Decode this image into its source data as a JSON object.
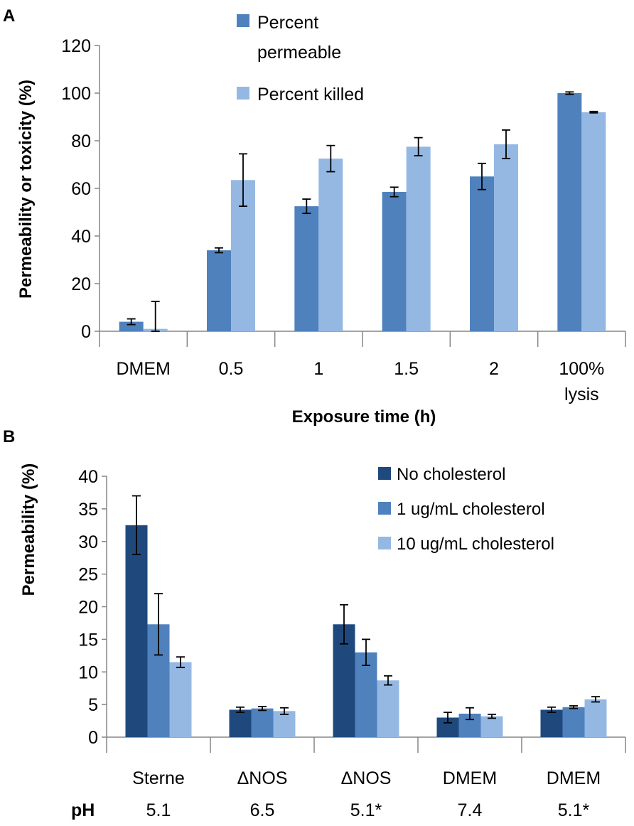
{
  "chart_data": [
    {
      "panel": "A",
      "type": "bar",
      "categories": [
        "DMEM",
        "0.5",
        "1",
        "1.5",
        "2",
        "100%\nlysis"
      ],
      "series": [
        {
          "name": "Percent\npermeable",
          "color": "#4F81BD",
          "values": [
            4,
            34,
            52.5,
            58.5,
            65,
            100
          ],
          "errors": [
            1.2,
            1.0,
            3.0,
            2.0,
            5.5,
            0.5
          ]
        },
        {
          "name": "Percent killed",
          "color": "#95B8E3",
          "values": [
            1,
            63.5,
            72.5,
            77.5,
            78.5,
            92
          ],
          "errors": [
            11.5,
            11.0,
            5.5,
            3.8,
            6.0,
            0.3
          ]
        }
      ],
      "xlabel": "Exposure time (h)",
      "ylabel": "Permeability or  toxicity (%)",
      "ylim": [
        0,
        120
      ],
      "yticks": [
        0,
        20,
        40,
        60,
        80,
        100,
        120
      ],
      "legend_position": "top-center"
    },
    {
      "panel": "B",
      "type": "bar",
      "categories": [
        "Sterne",
        "ΔNOS",
        "ΔNOS",
        "DMEM",
        "DMEM"
      ],
      "ph_label": "pH",
      "ph_values": [
        "5.1",
        "6.5",
        "5.1*",
        "7.4",
        "5.1*"
      ],
      "series": [
        {
          "name": "No cholesterol",
          "color": "#1F497D",
          "values": [
            32.5,
            4.2,
            17.3,
            3.0,
            4.2
          ],
          "errors": [
            4.5,
            0.4,
            3.0,
            0.8,
            0.4
          ]
        },
        {
          "name": "1 ug/mL cholesterol",
          "color": "#4F81BD",
          "values": [
            17.3,
            4.4,
            13.0,
            3.6,
            4.6
          ],
          "errors": [
            4.7,
            0.3,
            2.0,
            0.9,
            0.2
          ]
        },
        {
          "name": "10 ug/mL cholesterol",
          "color": "#95B8E3",
          "values": [
            11.5,
            4.0,
            8.7,
            3.2,
            5.8
          ],
          "errors": [
            0.8,
            0.5,
            0.7,
            0.3,
            0.4
          ]
        }
      ],
      "xlabel": "",
      "ylabel": "Permeability (%)",
      "ylim": [
        0,
        40
      ],
      "yticks": [
        0,
        5,
        10,
        15,
        20,
        25,
        30,
        35,
        40
      ],
      "legend_position": "top-right"
    }
  ],
  "labels": {
    "panel_a": "A",
    "panel_b": "B"
  }
}
